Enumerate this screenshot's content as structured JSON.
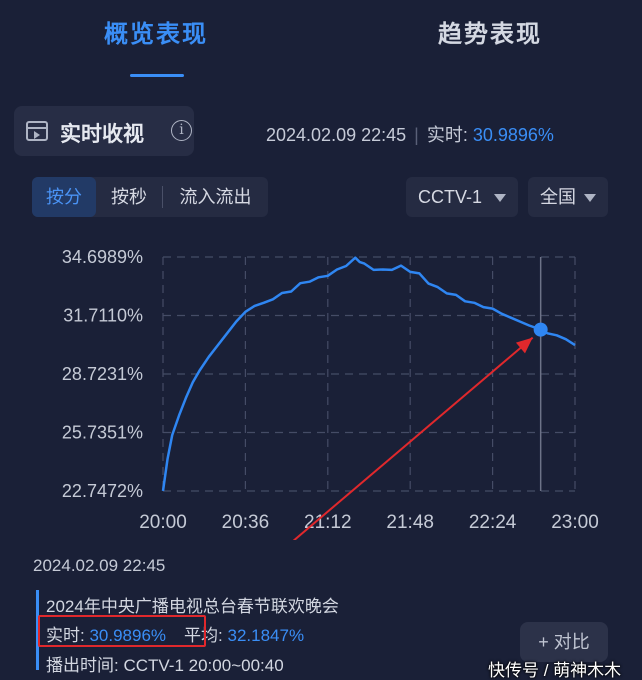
{
  "tabs": [
    {
      "label": "概览表现",
      "active": true
    },
    {
      "label": "趋势表现",
      "active": false
    }
  ],
  "section": {
    "title": "实时收视",
    "info_icon": "info-icon",
    "datetime": "2024.02.09 22:45",
    "realtime_label": "实时:",
    "realtime_value": "30.9896%"
  },
  "segmented": {
    "options": [
      "按分",
      "按秒",
      "流入流出"
    ],
    "selected": "按分"
  },
  "dropdowns": {
    "channel": "CCTV-1",
    "region": "全国"
  },
  "chart_data": {
    "type": "line",
    "title": "",
    "xlabel": "",
    "ylabel": "",
    "x_ticks": [
      "20:00",
      "20:36",
      "21:12",
      "21:48",
      "22:24",
      "23:00"
    ],
    "y_ticks": [
      "34.6989%",
      "31.7110%",
      "28.7231%",
      "25.7351%",
      "22.7472%"
    ],
    "ylim": [
      22.7472,
      34.6989
    ],
    "x_unit": "minutes since 20:00",
    "xlim": [
      0,
      180
    ],
    "grid": true,
    "grid_style": "dashed",
    "line_color": "#2f86f2",
    "series": [
      {
        "name": "",
        "points": [
          [
            0,
            22.75
          ],
          [
            2,
            24.4
          ],
          [
            4,
            25.6
          ],
          [
            7,
            26.6
          ],
          [
            10,
            27.5
          ],
          [
            13,
            28.3
          ],
          [
            16,
            28.9
          ],
          [
            20,
            29.6
          ],
          [
            24,
            30.2
          ],
          [
            28,
            30.8
          ],
          [
            32,
            31.4
          ],
          [
            36,
            31.9
          ],
          [
            40,
            32.2
          ],
          [
            44,
            32.3
          ],
          [
            48,
            32.6
          ],
          [
            52,
            32.8
          ],
          [
            56,
            33.0
          ],
          [
            60,
            33.3
          ],
          [
            64,
            33.5
          ],
          [
            68,
            33.6
          ],
          [
            72,
            33.8
          ],
          [
            76,
            34.0
          ],
          [
            80,
            34.3
          ],
          [
            84,
            34.6
          ],
          [
            86,
            34.5
          ],
          [
            88,
            34.3
          ],
          [
            92,
            34.1
          ],
          [
            96,
            34.0
          ],
          [
            100,
            34.1
          ],
          [
            104,
            34.2
          ],
          [
            108,
            34.0
          ],
          [
            112,
            33.8
          ],
          [
            116,
            33.4
          ],
          [
            120,
            33.1
          ],
          [
            124,
            32.9
          ],
          [
            128,
            32.7
          ],
          [
            132,
            32.5
          ],
          [
            136,
            32.3
          ],
          [
            140,
            32.2
          ],
          [
            144,
            32.0
          ],
          [
            148,
            31.8
          ],
          [
            152,
            31.6
          ],
          [
            156,
            31.4
          ],
          [
            160,
            31.2
          ],
          [
            165,
            30.99
          ],
          [
            168,
            30.8
          ],
          [
            172,
            30.7
          ],
          [
            176,
            30.5
          ],
          [
            180,
            30.2
          ]
        ]
      }
    ],
    "cursor": {
      "x": 165,
      "y": 30.9896
    }
  },
  "detail": {
    "datetime": "2024.02.09 22:45",
    "program": "2024年中央广播电视总台春节联欢晚会",
    "realtime_label": "实时:",
    "realtime_value": "30.9896%",
    "average_label": "平均:",
    "average_value": "32.1847%",
    "airtime_label": "播出时间:",
    "airtime_value": "CCTV-1 20:00~00:40"
  },
  "compare_button": "+ 对比",
  "watermark": "快传号 / 萌神木木",
  "colors": {
    "accent": "#3a8ef6",
    "background": "#1a2037",
    "annotation": "#e0282c"
  }
}
